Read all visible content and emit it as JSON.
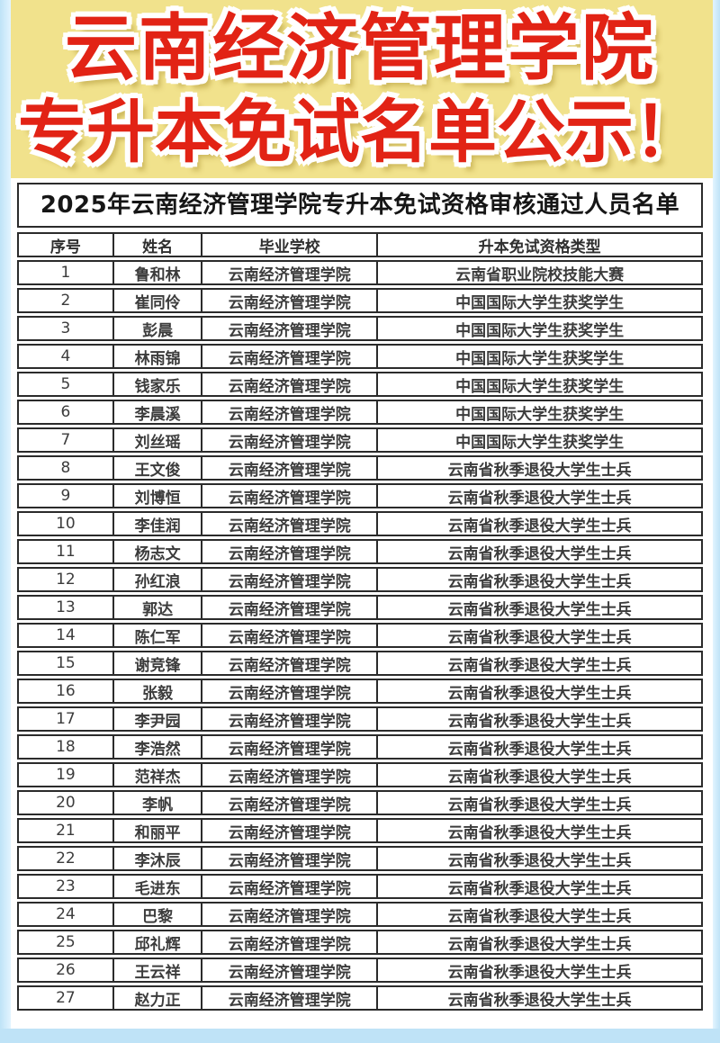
{
  "hero": {
    "line1": "云南经济管理学院",
    "line2": "专升本免试名单公示！"
  },
  "table": {
    "title": "2025年云南经济管理学院专升本免试资格审核通过人员名单",
    "columns": [
      "序号",
      "姓名",
      "毕业学校",
      "升本免试资格类型"
    ],
    "rows": [
      [
        "1",
        "鲁和林",
        "云南经济管理学院",
        "云南省职业院校技能大赛"
      ],
      [
        "2",
        "崔同伶",
        "云南经济管理学院",
        "中国国际大学生获奖学生"
      ],
      [
        "3",
        "彭晨",
        "云南经济管理学院",
        "中国国际大学生获奖学生"
      ],
      [
        "4",
        "林雨锦",
        "云南经济管理学院",
        "中国国际大学生获奖学生"
      ],
      [
        "5",
        "钱家乐",
        "云南经济管理学院",
        "中国国际大学生获奖学生"
      ],
      [
        "6",
        "李晨溪",
        "云南经济管理学院",
        "中国国际大学生获奖学生"
      ],
      [
        "7",
        "刘丝瑶",
        "云南经济管理学院",
        "中国国际大学生获奖学生"
      ],
      [
        "8",
        "王文俊",
        "云南经济管理学院",
        "云南省秋季退役大学生士兵"
      ],
      [
        "9",
        "刘博恒",
        "云南经济管理学院",
        "云南省秋季退役大学生士兵"
      ],
      [
        "10",
        "李佳润",
        "云南经济管理学院",
        "云南省秋季退役大学生士兵"
      ],
      [
        "11",
        "杨志文",
        "云南经济管理学院",
        "云南省秋季退役大学生士兵"
      ],
      [
        "12",
        "孙红浪",
        "云南经济管理学院",
        "云南省秋季退役大学生士兵"
      ],
      [
        "13",
        "郭达",
        "云南经济管理学院",
        "云南省秋季退役大学生士兵"
      ],
      [
        "14",
        "陈仁军",
        "云南经济管理学院",
        "云南省秋季退役大学生士兵"
      ],
      [
        "15",
        "谢竞锋",
        "云南经济管理学院",
        "云南省秋季退役大学生士兵"
      ],
      [
        "16",
        "张毅",
        "云南经济管理学院",
        "云南省秋季退役大学生士兵"
      ],
      [
        "17",
        "李尹园",
        "云南经济管理学院",
        "云南省秋季退役大学生士兵"
      ],
      [
        "18",
        "李浩然",
        "云南经济管理学院",
        "云南省秋季退役大学生士兵"
      ],
      [
        "19",
        "范祥杰",
        "云南经济管理学院",
        "云南省秋季退役大学生士兵"
      ],
      [
        "20",
        "李帆",
        "云南经济管理学院",
        "云南省秋季退役大学生士兵"
      ],
      [
        "21",
        "和丽平",
        "云南经济管理学院",
        "云南省秋季退役大学生士兵"
      ],
      [
        "22",
        "李沐辰",
        "云南经济管理学院",
        "云南省秋季退役大学生士兵"
      ],
      [
        "23",
        "毛进东",
        "云南经济管理学院",
        "云南省秋季退役大学生士兵"
      ],
      [
        "24",
        "巴黎",
        "云南经济管理学院",
        "云南省秋季退役大学生士兵"
      ],
      [
        "25",
        "邱礼辉",
        "云南经济管理学院",
        "云南省秋季退役大学生士兵"
      ],
      [
        "26",
        "王云祥",
        "云南经济管理学院",
        "云南省秋季退役大学生士兵"
      ],
      [
        "27",
        "赵力正",
        "云南经济管理学院",
        "云南省秋季退役大学生士兵"
      ]
    ]
  },
  "colors": {
    "banner_bg": "#f1e28c",
    "banner_text": "#e22315",
    "banner_outline": "#ffffff",
    "frame_blue": "#bfe3f7",
    "table_border": "#2b2b2b",
    "cell_text": "#3c3c3c",
    "title_text": "#161616"
  }
}
